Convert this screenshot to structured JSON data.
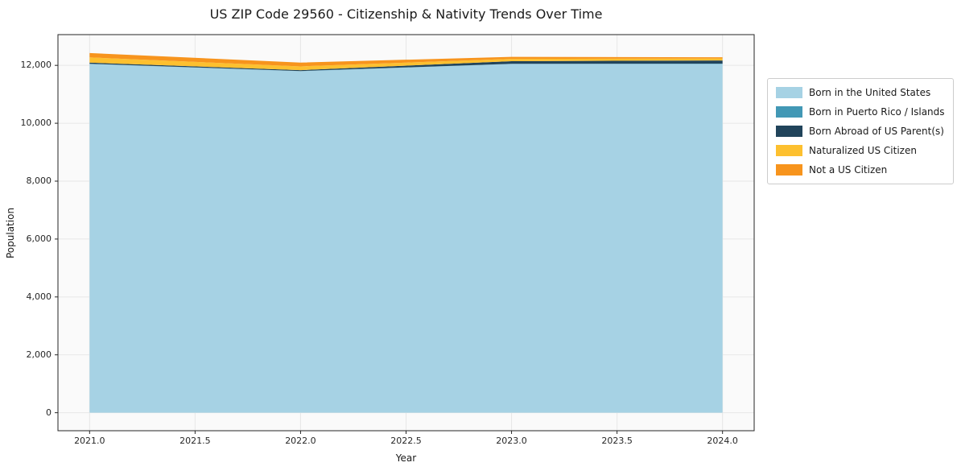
{
  "chart_data": {
    "type": "area",
    "stacked": true,
    "title": "US ZIP Code 29560 - Citizenship & Nativity Trends Over Time",
    "xlabel": "Year",
    "ylabel": "Population",
    "x": [
      2021,
      2022,
      2023,
      2024
    ],
    "xlim": [
      2020.85,
      2024.15
    ],
    "ylim": [
      -622,
      13062
    ],
    "grid": true,
    "grid_color": "#e7e7e7",
    "background": "#fafafa",
    "legend_position": "right",
    "x_ticks": [
      {
        "value": 2021.0,
        "label": "2021.0"
      },
      {
        "value": 2021.5,
        "label": "2021.5"
      },
      {
        "value": 2022.0,
        "label": "2022.0"
      },
      {
        "value": 2022.5,
        "label": "2022.5"
      },
      {
        "value": 2023.0,
        "label": "2023.0"
      },
      {
        "value": 2023.5,
        "label": "2023.5"
      },
      {
        "value": 2024.0,
        "label": "2024.0"
      }
    ],
    "y_ticks": [
      {
        "value": 0,
        "label": "0"
      },
      {
        "value": 2000,
        "label": "2,000"
      },
      {
        "value": 4000,
        "label": "4,000"
      },
      {
        "value": 6000,
        "label": "6,000"
      },
      {
        "value": 8000,
        "label": "8,000"
      },
      {
        "value": 10000,
        "label": "10,000"
      },
      {
        "value": 12000,
        "label": "12,000"
      }
    ],
    "series": [
      {
        "name": "Born in the United States",
        "color": "#a6d2e4",
        "values": [
          12050,
          11800,
          12050,
          12050
        ]
      },
      {
        "name": "Born in Puerto Rico / Islands",
        "color": "#4298b5",
        "values": [
          5,
          5,
          5,
          10
        ]
      },
      {
        "name": "Born Abroad of US Parent(s)",
        "color": "#21445b",
        "values": [
          40,
          30,
          90,
          110
        ]
      },
      {
        "name": "Naturalized US Citizen",
        "color": "#fdc02f",
        "values": [
          180,
          130,
          80,
          70
        ]
      },
      {
        "name": "Not a US Citizen",
        "color": "#f7941d",
        "values": [
          150,
          130,
          70,
          40
        ]
      }
    ]
  }
}
